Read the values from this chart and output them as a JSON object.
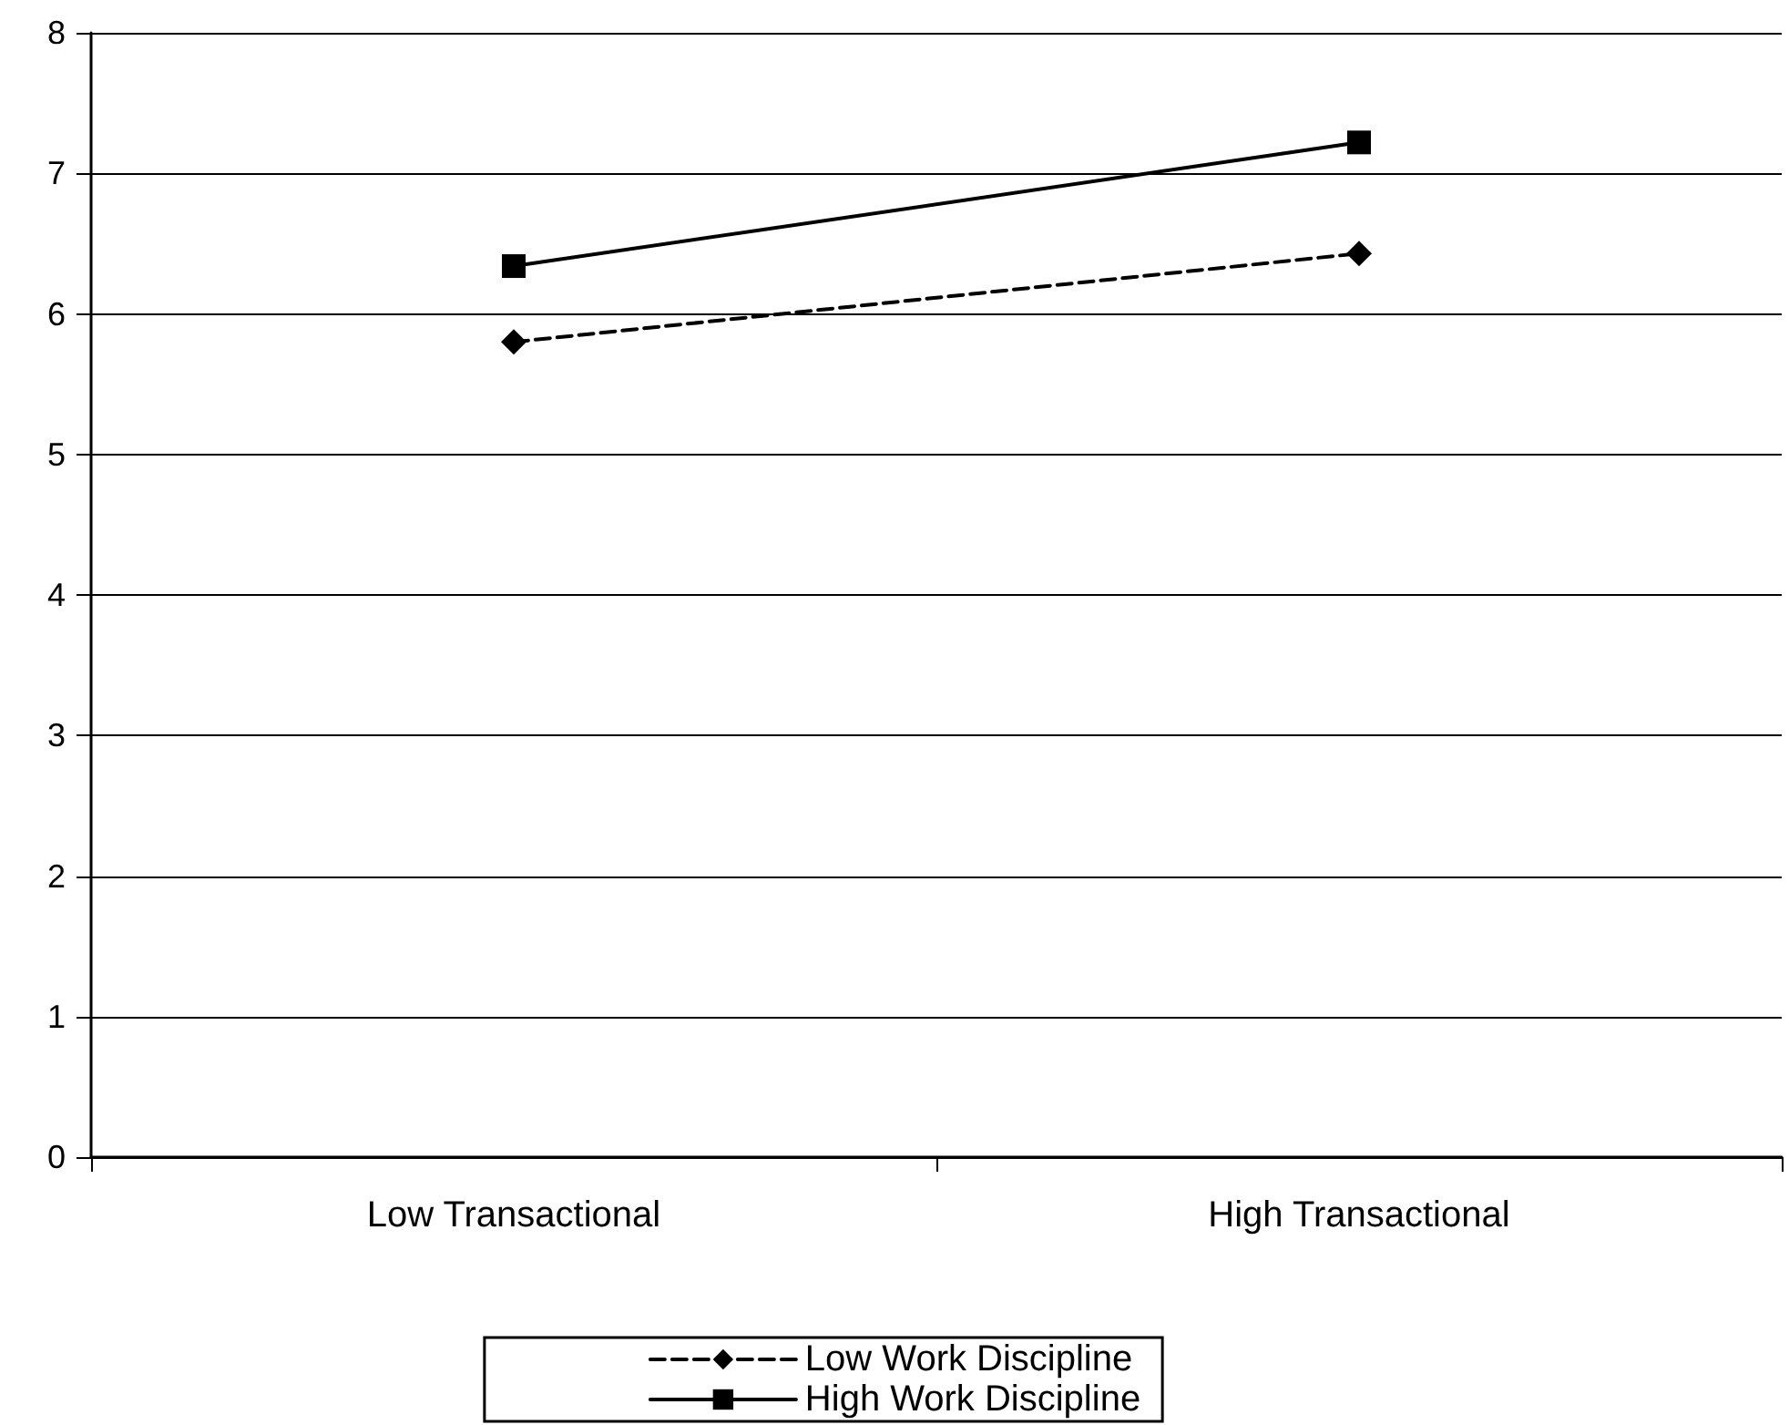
{
  "chart_data": {
    "type": "line",
    "categories": [
      "Low Transactional",
      "High Transactional"
    ],
    "series": [
      {
        "name": "Low Work Discipline",
        "color": "#000000",
        "values": [
          5.8,
          6.43
        ],
        "marker": "diamond",
        "line_style": "dashed"
      },
      {
        "name": "High Work Discipline",
        "color": "#000000",
        "values": [
          6.34,
          7.22
        ],
        "marker": "square",
        "line_style": "solid"
      }
    ],
    "ylim": [
      0,
      8
    ],
    "yticks": [
      0,
      1,
      2,
      3,
      4,
      5,
      6,
      7,
      8
    ],
    "grid": "y",
    "legend": "bottom"
  }
}
